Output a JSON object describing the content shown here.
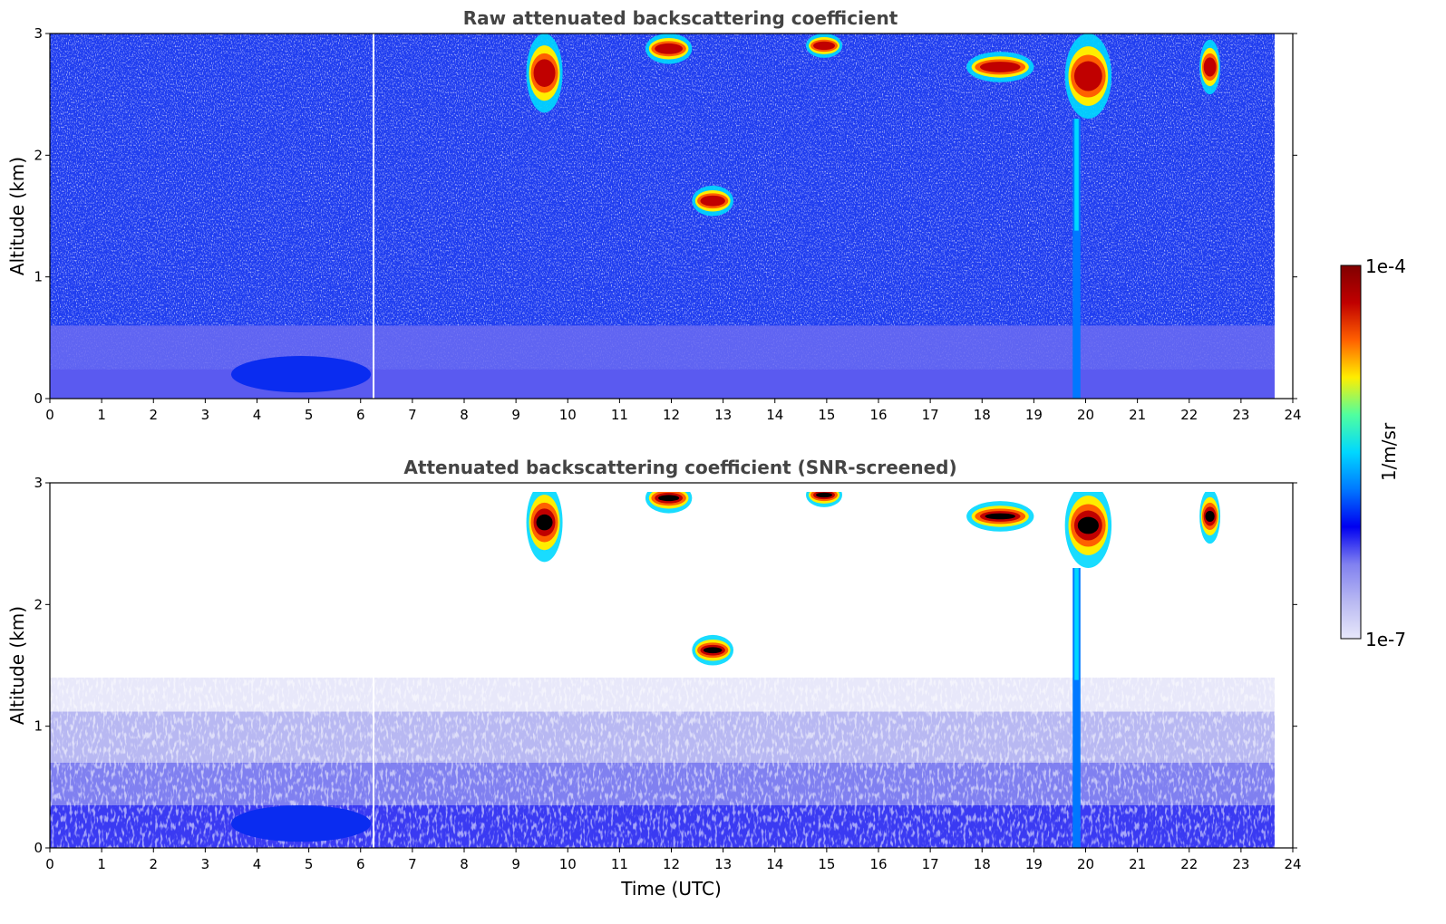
{
  "chart_data": [
    {
      "type": "heatmap",
      "title": "Raw attenuated backscattering coefficient",
      "xlabel": "",
      "ylabel": "Altitude (km)",
      "xlim": [
        0,
        24
      ],
      "ylim": [
        0,
        3
      ],
      "x_data_end": 23.65,
      "xticks": [
        "0",
        "1",
        "2",
        "3",
        "4",
        "5",
        "6",
        "7",
        "8",
        "9",
        "10",
        "11",
        "12",
        "13",
        "14",
        "15",
        "16",
        "17",
        "18",
        "19",
        "20",
        "21",
        "22",
        "23",
        "24"
      ],
      "yticks": [
        "0",
        "1",
        "2",
        "3"
      ],
      "screened": false,
      "features": [
        {
          "kind": "boundary-layer",
          "x": [
            0,
            23.65
          ],
          "y": [
            0,
            0.6
          ]
        },
        {
          "kind": "aerosol-plume",
          "x": [
            3.5,
            6.2
          ],
          "y": [
            0.05,
            0.35
          ]
        },
        {
          "kind": "cloud",
          "x": [
            9.2,
            9.9
          ],
          "y": [
            2.35,
            3.0
          ]
        },
        {
          "kind": "cloud",
          "x": [
            11.5,
            12.4
          ],
          "y": [
            2.75,
            3.0
          ]
        },
        {
          "kind": "cloud",
          "x": [
            12.4,
            13.2
          ],
          "y": [
            1.5,
            1.75
          ]
        },
        {
          "kind": "cloud",
          "x": [
            14.6,
            15.3
          ],
          "y": [
            2.8,
            3.0
          ]
        },
        {
          "kind": "cloud",
          "x": [
            17.7,
            19.0
          ],
          "y": [
            2.6,
            2.85
          ]
        },
        {
          "kind": "cloud",
          "x": [
            19.6,
            20.5
          ],
          "y": [
            2.3,
            3.0
          ]
        },
        {
          "kind": "cloud",
          "x": [
            22.2,
            22.6
          ],
          "y": [
            2.5,
            2.95
          ]
        },
        {
          "kind": "precipitation",
          "x": [
            19.75,
            19.9
          ],
          "y": [
            0,
            2.3
          ]
        }
      ]
    },
    {
      "type": "heatmap",
      "title": "Attenuated backscattering coefficient (SNR-screened)",
      "xlabel": "Time (UTC)",
      "ylabel": "Altitude (km)",
      "xlim": [
        0,
        24
      ],
      "ylim": [
        0,
        3
      ],
      "x_data_end": 23.65,
      "xticks": [
        "0",
        "1",
        "2",
        "3",
        "4",
        "5",
        "6",
        "7",
        "8",
        "9",
        "10",
        "11",
        "12",
        "13",
        "14",
        "15",
        "16",
        "17",
        "18",
        "19",
        "20",
        "21",
        "22",
        "23",
        "24"
      ],
      "yticks": [
        "0",
        "1",
        "2",
        "3"
      ],
      "screened": true,
      "features": [
        {
          "kind": "boundary-layer",
          "x": [
            0,
            23.65
          ],
          "y": [
            0,
            1.4
          ]
        },
        {
          "kind": "aerosol-plume",
          "x": [
            3.5,
            6.2
          ],
          "y": [
            0.05,
            0.35
          ]
        },
        {
          "kind": "cloud",
          "x": [
            9.2,
            9.9
          ],
          "y": [
            2.35,
            3.0
          ]
        },
        {
          "kind": "cloud",
          "x": [
            11.5,
            12.4
          ],
          "y": [
            2.75,
            3.0
          ]
        },
        {
          "kind": "cloud",
          "x": [
            12.4,
            13.2
          ],
          "y": [
            1.5,
            1.75
          ]
        },
        {
          "kind": "cloud",
          "x": [
            14.6,
            15.3
          ],
          "y": [
            2.8,
            3.0
          ]
        },
        {
          "kind": "cloud",
          "x": [
            17.7,
            19.0
          ],
          "y": [
            2.6,
            2.85
          ]
        },
        {
          "kind": "cloud",
          "x": [
            19.6,
            20.5
          ],
          "y": [
            2.3,
            3.0
          ]
        },
        {
          "kind": "cloud",
          "x": [
            22.2,
            22.6
          ],
          "y": [
            2.5,
            2.95
          ]
        },
        {
          "kind": "precipitation",
          "x": [
            19.75,
            19.9
          ],
          "y": [
            0,
            2.3
          ]
        }
      ]
    }
  ],
  "colorbar": {
    "label": "1/m/sr",
    "min_label": "1e-7",
    "max_label": "1e-4",
    "colormap": "jet",
    "colors": [
      "#e8e8fa",
      "#b8b8f2",
      "#8080f0",
      "#0000f0",
      "#0078ff",
      "#00d8ff",
      "#50ff9f",
      "#ffee00",
      "#ff6000",
      "#c00000",
      "#800000"
    ]
  }
}
